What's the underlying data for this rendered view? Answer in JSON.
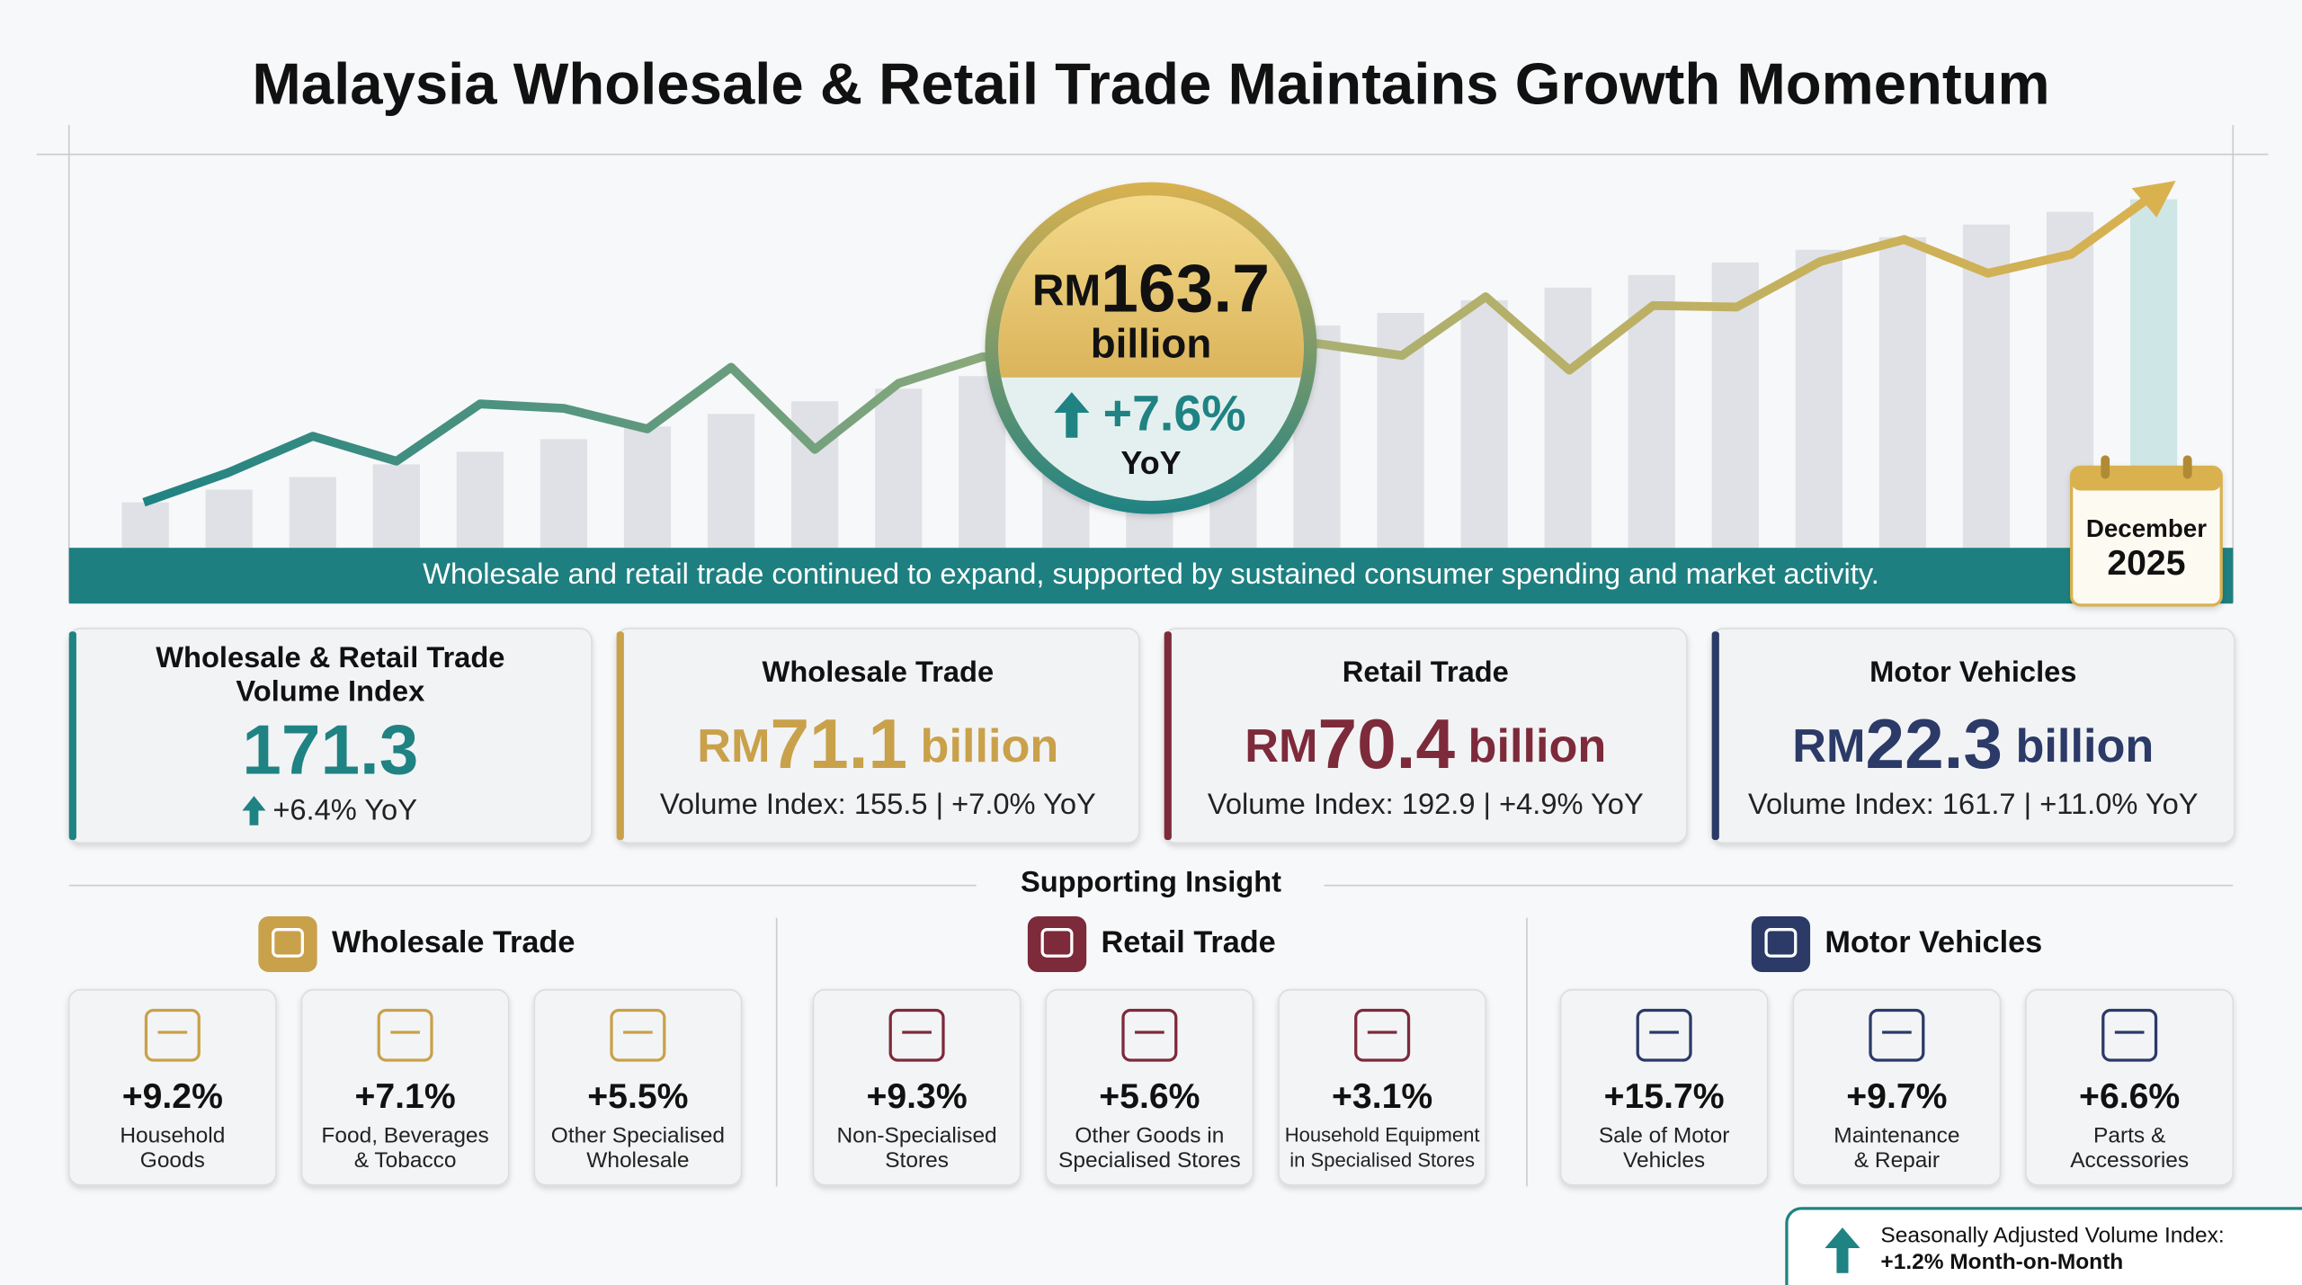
{
  "header": {
    "title": "Malaysia Wholesale & Retail Trade Maintains Growth Momentum"
  },
  "hero": {
    "currency": "RM",
    "value": "163.7",
    "unit": "billion",
    "change": "+7.6%",
    "change_label": "YoY"
  },
  "banner": {
    "text": "Wholesale and retail trade continued to expand, supported by sustained consumer spending and market activity."
  },
  "date_badge": {
    "month": "December",
    "year": "2025"
  },
  "cards": [
    {
      "title": [
        "Wholesale & Retail Trade",
        "Volume Index"
      ],
      "value": "171.3",
      "detail": "+6.4% YoY"
    },
    {
      "title": [
        "Wholesale Trade"
      ],
      "currency": "RM",
      "value": "71.1",
      "unit": "billion",
      "detail": "Volume Index: 155.5 | +7.0% YoY"
    },
    {
      "title": [
        "Retail Trade"
      ],
      "currency": "RM",
      "value": "70.4",
      "unit": "billion",
      "detail": "Volume Index: 192.9 | +4.9% YoY"
    },
    {
      "title": [
        "Motor Vehicles"
      ],
      "currency": "RM",
      "value": "22.3",
      "unit": "billion",
      "detail": "Volume Index: 161.7 | +11.0% YoY"
    }
  ],
  "insight": {
    "title": "Supporting Insight",
    "groups": [
      {
        "title": "Wholesale Trade",
        "items": [
          {
            "value": "+9.2%",
            "label": [
              "Household",
              "Goods"
            ]
          },
          {
            "value": "+7.1%",
            "label": [
              "Food, Beverages",
              "& Tobacco"
            ]
          },
          {
            "value": "+5.5%",
            "label": [
              "Other Specialised",
              "Wholesale"
            ]
          }
        ]
      },
      {
        "title": "Retail Trade",
        "items": [
          {
            "value": "+9.3%",
            "label": [
              "Non-Specialised",
              "Stores"
            ]
          },
          {
            "value": "+5.6%",
            "label": [
              "Other Goods in",
              "Specialised Stores"
            ]
          },
          {
            "value": "+3.1%",
            "label": [
              "Household Equipment",
              "in Specialised Stores"
            ]
          }
        ]
      },
      {
        "title": "Motor Vehicles",
        "items": [
          {
            "value": "+15.7%",
            "label": [
              "Sale of Motor",
              "Vehicles"
            ]
          },
          {
            "value": "+9.7%",
            "label": [
              "Maintenance",
              "& Repair"
            ]
          },
          {
            "value": "+6.6%",
            "label": [
              "Parts &",
              "Accessories"
            ]
          }
        ]
      }
    ]
  },
  "footnote": {
    "lines": [
      "Seasonally Adjusted Volume Index:",
      "+1.2% Month-on-Month"
    ]
  }
}
